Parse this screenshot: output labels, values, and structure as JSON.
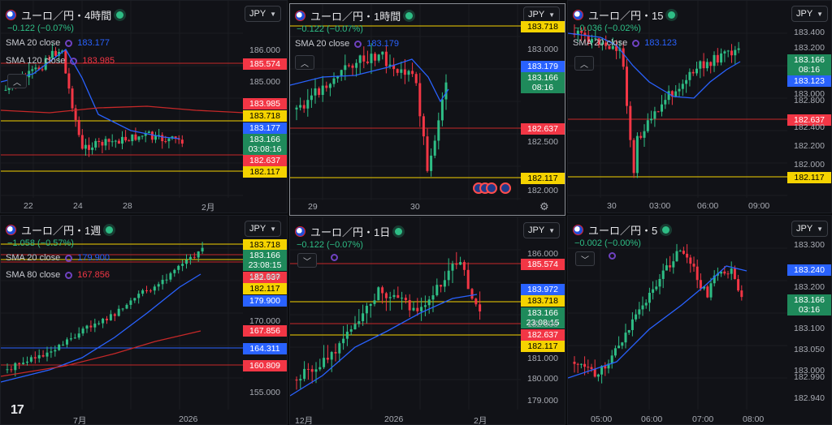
{
  "colors": {
    "up": "#2ebd85",
    "down": "#f23645",
    "sma20": "#2962ff",
    "sma_long": "#c62828",
    "yellow_line": "#f5d300",
    "red_line": "#c62828",
    "blue_line": "#2962ff"
  },
  "panels": [
    {
      "id": "p1",
      "title": "ユーロ／円・4時間",
      "change": "−0.122 (−0.07%)",
      "currency": "JPY",
      "indicators": [
        {
          "label": "SMA 20 close",
          "value": "183.177",
          "color": "#2962ff"
        },
        {
          "label": "SMA 120 close",
          "value": "183.985",
          "color": "#f23645"
        }
      ],
      "axis_prices": [
        "186.000",
        "185.000"
      ],
      "tags": [
        {
          "text": "185.574",
          "bg": "#f23645",
          "fg": "#ffffff"
        },
        {
          "text": "183.985",
          "bg": "#f23645",
          "fg": "#ffffff"
        },
        {
          "text": "183.718",
          "bg": "#f5d300",
          "fg": "#000000"
        },
        {
          "text": "183.177",
          "bg": "#2962ff",
          "fg": "#ffffff"
        },
        {
          "text": "183.166",
          "text2": "03:08:16",
          "bg": "#1f8a5b",
          "fg": "#ffffff"
        },
        {
          "text": "182.637",
          "bg": "#f23645",
          "fg": "#ffffff"
        },
        {
          "text": "182.117",
          "bg": "#f5d300",
          "fg": "#000000"
        }
      ],
      "time_labels": [
        "22",
        "24",
        "28",
        "2月"
      ]
    },
    {
      "id": "p2",
      "title": "ユーロ／円・1時間",
      "change": "−0.122 (−0.07%)",
      "currency": "JPY",
      "indicators": [
        {
          "label": "SMA 20 close",
          "value": "183.179",
          "color": "#2962ff"
        }
      ],
      "axis_prices": [
        "183.000",
        "182.500",
        "182.000"
      ],
      "tags": [
        {
          "text": "183.718",
          "bg": "#f5d300",
          "fg": "#000000"
        },
        {
          "text": "183.179",
          "bg": "#2962ff",
          "fg": "#ffffff"
        },
        {
          "text": "183.166",
          "text2": "08:16",
          "bg": "#1f8a5b",
          "fg": "#ffffff"
        },
        {
          "text": "182.637",
          "bg": "#f23645",
          "fg": "#ffffff"
        },
        {
          "text": "182.117",
          "bg": "#f5d300",
          "fg": "#000000"
        }
      ],
      "time_labels": [
        "29",
        "30"
      ]
    },
    {
      "id": "p3",
      "title": "ユーロ／円・15",
      "change": "−0.036 (−0.02%)",
      "currency": "JPY",
      "indicators": [
        {
          "label": "SMA 20 close",
          "value": "183.123",
          "color": "#2962ff"
        }
      ],
      "axis_prices": [
        "183.400",
        "183.200",
        "183.000",
        "182.800",
        "182.400",
        "182.200",
        "182.000"
      ],
      "tags": [
        {
          "text": "183.166",
          "text2": "08:16",
          "bg": "#1f8a5b",
          "fg": "#ffffff"
        },
        {
          "text": "183.123",
          "bg": "#2962ff",
          "fg": "#ffffff"
        },
        {
          "text": "182.637",
          "bg": "#f23645",
          "fg": "#ffffff"
        },
        {
          "text": "182.117",
          "bg": "#f5d300",
          "fg": "#000000"
        }
      ],
      "time_labels": [
        "30",
        "03:00",
        "06:00",
        "09:00"
      ]
    },
    {
      "id": "p4",
      "title": "ユーロ／円・1週",
      "change": "−1.058 (−0.57%)",
      "currency": "JPY",
      "indicators": [
        {
          "label": "SMA 20 close",
          "value": "179.900",
          "color": "#2962ff"
        },
        {
          "label": "SMA 80 close",
          "value": "167.856",
          "color": "#f23645"
        }
      ],
      "axis_prices": [
        "175.000",
        "170.000",
        "155.000"
      ],
      "tags": [
        {
          "text": "183.718",
          "bg": "#f5d300",
          "fg": "#000000"
        },
        {
          "text": "183.166",
          "text2": "23:08:15",
          "bg": "#1f8a5b",
          "fg": "#ffffff"
        },
        {
          "text": "182.637",
          "bg": "#f23645",
          "fg": "#ffffff"
        },
        {
          "text": "182.117",
          "bg": "#f5d300",
          "fg": "#000000"
        },
        {
          "text": "179.900",
          "bg": "#2962ff",
          "fg": "#ffffff"
        },
        {
          "text": "167.856",
          "bg": "#f23645",
          "fg": "#ffffff"
        },
        {
          "text": "164.311",
          "bg": "#2962ff",
          "fg": "#ffffff"
        },
        {
          "text": "160.809",
          "bg": "#f23645",
          "fg": "#ffffff"
        }
      ],
      "time_labels": [
        "7月",
        "2026"
      ]
    },
    {
      "id": "p5",
      "title": "ユーロ／円・1日",
      "change": "−0.122 (−0.07%)",
      "currency": "JPY",
      "indicators": [],
      "axis_prices": [
        "186.000",
        "182.000",
        "181.000",
        "180.000",
        "179.000"
      ],
      "tags": [
        {
          "text": "185.574",
          "bg": "#f23645",
          "fg": "#ffffff"
        },
        {
          "text": "183.972",
          "bg": "#2962ff",
          "fg": "#ffffff"
        },
        {
          "text": "183.718",
          "bg": "#f5d300",
          "fg": "#000000"
        },
        {
          "text": "183.166",
          "text2": "23:08:15",
          "bg": "#1f8a5b",
          "fg": "#ffffff"
        },
        {
          "text": "182.637",
          "bg": "#f23645",
          "fg": "#ffffff"
        },
        {
          "text": "182.117",
          "bg": "#f5d300",
          "fg": "#000000"
        }
      ],
      "time_labels": [
        "12月",
        "2026",
        "2月"
      ]
    },
    {
      "id": "p6",
      "title": "ユーロ／円・5",
      "change": "−0.002 (−0.00%)",
      "currency": "JPY",
      "indicators": [],
      "axis_prices": [
        "183.300",
        "183.200",
        "183.100",
        "183.050",
        "183.000",
        "182.990",
        "182.940"
      ],
      "tags": [
        {
          "text": "183.240",
          "bg": "#2962ff",
          "fg": "#ffffff"
        },
        {
          "text": "183.166",
          "text2": "03:16",
          "bg": "#1f8a5b",
          "fg": "#ffffff"
        }
      ],
      "time_labels": [
        "05:00",
        "06:00",
        "07:00",
        "08:00"
      ]
    }
  ],
  "logo": "17"
}
